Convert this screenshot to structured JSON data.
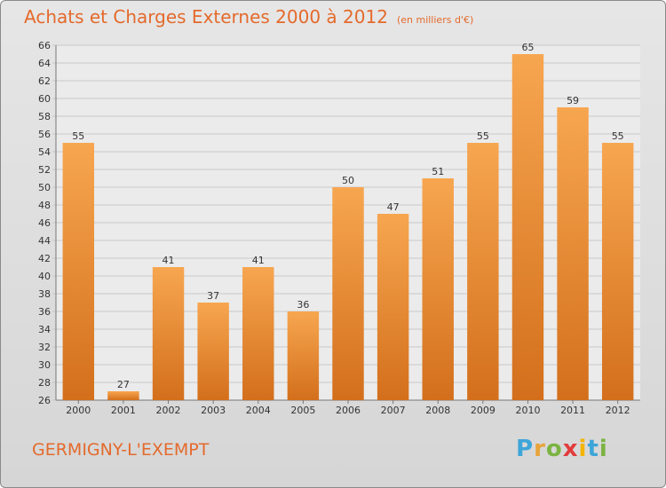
{
  "header": {
    "title": "Achats et Charges Externes 2000 à 2012",
    "unit": "(en milliers d'€)"
  },
  "footer": {
    "place": "GERMIGNY-L'EXEMPT",
    "logo": {
      "letters": [
        "P",
        "r",
        "o",
        "x",
        "i",
        "t",
        "i"
      ],
      "colors": [
        "#3da5d9",
        "#e8a33a",
        "#7cb342",
        "#e23b3b",
        "#f4b400",
        "#3da5d9",
        "#7cb342"
      ]
    }
  },
  "chart_data": {
    "type": "bar",
    "title": "Achats et Charges Externes 2000 à 2012",
    "categories": [
      "2000",
      "2001",
      "2002",
      "2003",
      "2004",
      "2005",
      "2006",
      "2007",
      "2008",
      "2009",
      "2010",
      "2011",
      "2012"
    ],
    "values": [
      55,
      27,
      41,
      37,
      41,
      36,
      50,
      47,
      51,
      55,
      65,
      59,
      55
    ],
    "ylim": [
      26,
      66
    ],
    "ytick_step": 2,
    "xlabel": "",
    "ylabel": "",
    "grid": true,
    "bar_color": "#f0943a",
    "legend": "none"
  }
}
